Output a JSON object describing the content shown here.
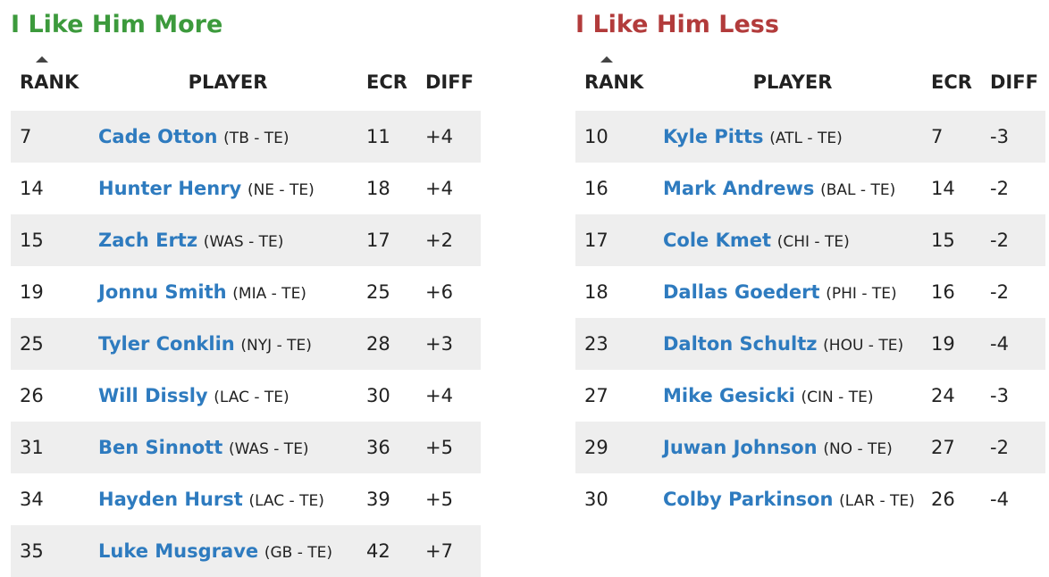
{
  "panels": [
    {
      "title": "I Like Him More",
      "columns": [
        "RANK",
        "PLAYER",
        "ECR",
        "DIFF"
      ],
      "rows": [
        {
          "rank": "7",
          "name": "Cade Otton",
          "team": "(TB - TE)",
          "ecr": "11",
          "diff": "+4"
        },
        {
          "rank": "14",
          "name": "Hunter Henry",
          "team": "(NE - TE)",
          "ecr": "18",
          "diff": "+4"
        },
        {
          "rank": "15",
          "name": "Zach Ertz",
          "team": "(WAS - TE)",
          "ecr": "17",
          "diff": "+2"
        },
        {
          "rank": "19",
          "name": "Jonnu Smith",
          "team": "(MIA - TE)",
          "ecr": "25",
          "diff": "+6"
        },
        {
          "rank": "25",
          "name": "Tyler Conklin",
          "team": "(NYJ - TE)",
          "ecr": "28",
          "diff": "+3"
        },
        {
          "rank": "26",
          "name": "Will Dissly",
          "team": "(LAC - TE)",
          "ecr": "30",
          "diff": "+4"
        },
        {
          "rank": "31",
          "name": "Ben Sinnott",
          "team": "(WAS - TE)",
          "ecr": "36",
          "diff": "+5"
        },
        {
          "rank": "34",
          "name": "Hayden Hurst",
          "team": "(LAC - TE)",
          "ecr": "39",
          "diff": "+5"
        },
        {
          "rank": "35",
          "name": "Luke Musgrave",
          "team": "(GB - TE)",
          "ecr": "42",
          "diff": "+7"
        }
      ]
    },
    {
      "title": "I Like Him Less",
      "columns": [
        "RANK",
        "PLAYER",
        "ECR",
        "DIFF"
      ],
      "rows": [
        {
          "rank": "10",
          "name": "Kyle Pitts",
          "team": "(ATL - TE)",
          "ecr": "7",
          "diff": "-3"
        },
        {
          "rank": "16",
          "name": "Mark Andrews",
          "team": "(BAL - TE)",
          "ecr": "14",
          "diff": "-2"
        },
        {
          "rank": "17",
          "name": "Cole Kmet",
          "team": "(CHI - TE)",
          "ecr": "15",
          "diff": "-2"
        },
        {
          "rank": "18",
          "name": "Dallas Goedert",
          "team": "(PHI - TE)",
          "ecr": "16",
          "diff": "-2"
        },
        {
          "rank": "23",
          "name": "Dalton Schultz",
          "team": "(HOU - TE)",
          "ecr": "19",
          "diff": "-4"
        },
        {
          "rank": "27",
          "name": "Mike Gesicki",
          "team": "(CIN - TE)",
          "ecr": "24",
          "diff": "-3"
        },
        {
          "rank": "29",
          "name": "Juwan Johnson",
          "team": "(NO - TE)",
          "ecr": "27",
          "diff": "-2"
        },
        {
          "rank": "30",
          "name": "Colby Parkinson",
          "team": "(LAR - TE)",
          "ecr": "26",
          "diff": "-4"
        }
      ]
    }
  ]
}
